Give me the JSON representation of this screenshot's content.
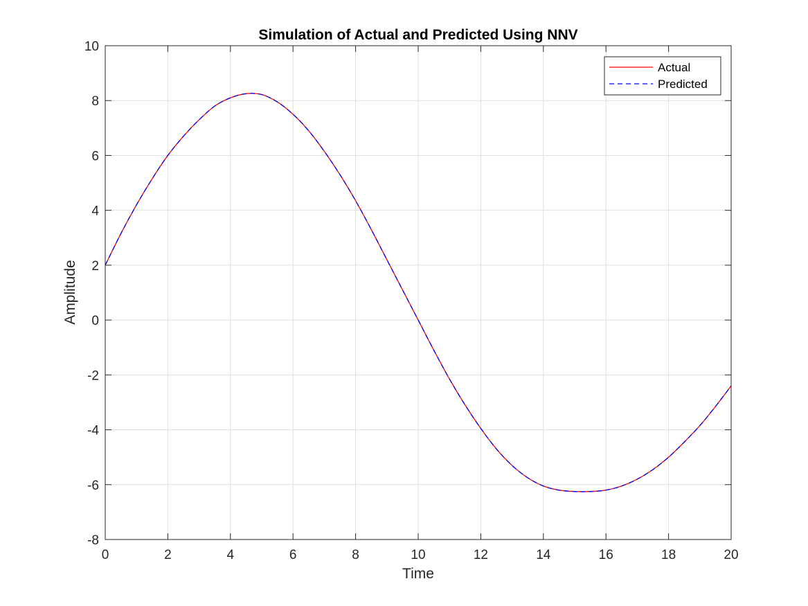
{
  "chart_data": {
    "type": "line",
    "title": "Simulation of Actual and Predicted Using NNV",
    "xlabel": "Time",
    "ylabel": "Amplitude",
    "xlim": [
      0,
      20
    ],
    "ylim": [
      -8,
      10
    ],
    "xticks": [
      0,
      2,
      4,
      6,
      8,
      10,
      12,
      14,
      16,
      18,
      20
    ],
    "yticks": [
      -8,
      -6,
      -4,
      -2,
      0,
      2,
      4,
      6,
      8,
      10
    ],
    "grid": true,
    "legend_position": "top-right",
    "series": [
      {
        "name": "Actual",
        "color": "#ff0000",
        "style": "solid",
        "x": [
          0,
          0.5,
          1,
          1.5,
          2,
          2.5,
          3,
          3.5,
          4,
          4.5,
          5,
          5.5,
          6,
          6.5,
          7,
          7.5,
          8,
          8.5,
          9,
          9.5,
          10,
          10.5,
          11,
          11.5,
          12,
          12.5,
          13,
          13.5,
          14,
          14.5,
          15,
          15.5,
          16,
          16.5,
          17,
          17.5,
          18,
          18.5,
          19,
          19.5,
          20
        ],
        "y": [
          2.0,
          3.15,
          4.2,
          5.15,
          6.0,
          6.7,
          7.3,
          7.8,
          8.1,
          8.25,
          8.22,
          7.95,
          7.5,
          6.9,
          6.15,
          5.3,
          4.35,
          3.3,
          2.2,
          1.1,
          0.0,
          -1.1,
          -2.15,
          -3.1,
          -3.95,
          -4.7,
          -5.3,
          -5.75,
          -6.05,
          -6.2,
          -6.25,
          -6.25,
          -6.2,
          -6.05,
          -5.8,
          -5.45,
          -5.0,
          -4.45,
          -3.85,
          -3.15,
          -2.4
        ]
      },
      {
        "name": "Predicted",
        "color": "#0000ff",
        "style": "dashed",
        "x": [
          0,
          0.5,
          1,
          1.5,
          2,
          2.5,
          3,
          3.5,
          4,
          4.5,
          5,
          5.5,
          6,
          6.5,
          7,
          7.5,
          8,
          8.5,
          9,
          9.5,
          10,
          10.5,
          11,
          11.5,
          12,
          12.5,
          13,
          13.5,
          14,
          14.5,
          15,
          15.5,
          16,
          16.5,
          17,
          17.5,
          18,
          18.5,
          19,
          19.5,
          20
        ],
        "y": [
          2.0,
          3.15,
          4.2,
          5.15,
          6.0,
          6.7,
          7.3,
          7.8,
          8.1,
          8.25,
          8.22,
          7.95,
          7.5,
          6.9,
          6.15,
          5.3,
          4.35,
          3.3,
          2.2,
          1.1,
          0.0,
          -1.1,
          -2.15,
          -3.1,
          -3.95,
          -4.7,
          -5.3,
          -5.75,
          -6.05,
          -6.2,
          -6.25,
          -6.25,
          -6.2,
          -6.05,
          -5.8,
          -5.45,
          -5.0,
          -4.45,
          -3.85,
          -3.15,
          -2.4
        ]
      }
    ]
  }
}
